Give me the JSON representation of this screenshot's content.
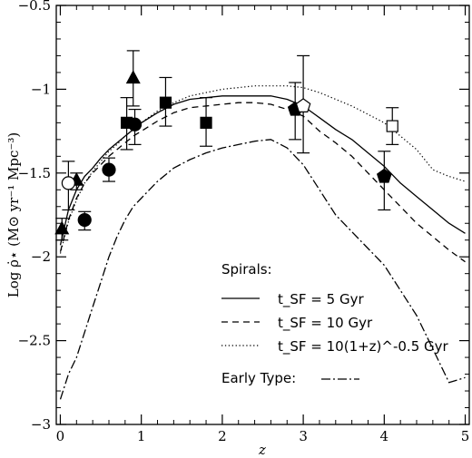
{
  "chart_data": {
    "type": "line",
    "xlabel": "z",
    "ylabel": "Log ρ̇⋆ (M⊙ yr⁻¹ Mpc⁻³)",
    "xlim": [
      -0.05,
      5.05
    ],
    "ylim": [
      -3,
      -0.5
    ],
    "xticks": [
      0,
      1,
      2,
      3,
      4,
      5
    ],
    "yticks": [
      -3,
      -2.5,
      -2,
      -1.5,
      -1,
      -0.5
    ],
    "xtick_labels": [
      "0",
      "1",
      "2",
      "3",
      "4",
      "5"
    ],
    "ytick_labels": [
      "−3",
      "−2.5",
      "−2",
      "−1.5",
      "−1",
      "−0.5"
    ],
    "grid": false,
    "legend_position": "bottom-right",
    "legend": {
      "header1": "Spirals:",
      "row1": "t_SF = 5 Gyr",
      "row2": "t_SF = 10 Gyr",
      "row3": "t_SF = 10(1+z)^-0.5 Gyr",
      "header2": "Early Type:"
    },
    "series": [
      {
        "name": "t_SF = 5 Gyr",
        "style": "solid",
        "x": [
          0,
          0.1,
          0.2,
          0.3,
          0.4,
          0.5,
          0.6,
          0.7,
          0.8,
          0.9,
          1.0,
          1.2,
          1.4,
          1.6,
          1.8,
          2.0,
          2.2,
          2.4,
          2.6,
          2.8,
          3.0,
          3.2,
          3.4,
          3.6,
          3.8,
          4.0,
          4.2,
          4.4,
          4.6,
          4.8,
          5.0
        ],
        "y": [
          -1.93,
          -1.72,
          -1.6,
          -1.52,
          -1.47,
          -1.41,
          -1.36,
          -1.32,
          -1.28,
          -1.24,
          -1.2,
          -1.14,
          -1.09,
          -1.06,
          -1.05,
          -1.04,
          -1.04,
          -1.04,
          -1.04,
          -1.06,
          -1.1,
          -1.17,
          -1.24,
          -1.3,
          -1.38,
          -1.46,
          -1.56,
          -1.64,
          -1.72,
          -1.8,
          -1.86
        ]
      },
      {
        "name": "t_SF = 10 Gyr",
        "style": "dashed",
        "x": [
          0,
          0.1,
          0.2,
          0.3,
          0.4,
          0.5,
          0.6,
          0.7,
          0.8,
          0.9,
          1.0,
          1.2,
          1.4,
          1.6,
          1.8,
          2.0,
          2.2,
          2.4,
          2.6,
          2.8,
          3.0,
          3.2,
          3.4,
          3.6,
          3.8,
          4.0,
          4.2,
          4.4,
          4.6,
          4.8,
          5.0
        ],
        "y": [
          -1.97,
          -1.78,
          -1.65,
          -1.56,
          -1.5,
          -1.45,
          -1.4,
          -1.36,
          -1.32,
          -1.28,
          -1.25,
          -1.19,
          -1.14,
          -1.11,
          -1.1,
          -1.09,
          -1.08,
          -1.08,
          -1.09,
          -1.12,
          -1.16,
          -1.25,
          -1.32,
          -1.4,
          -1.5,
          -1.6,
          -1.7,
          -1.8,
          -1.88,
          -1.96,
          -2.03
        ]
      },
      {
        "name": "t_SF = 10(1+z)^-0.5 Gyr",
        "style": "dotted",
        "x": [
          0,
          0.1,
          0.2,
          0.3,
          0.4,
          0.5,
          0.6,
          0.7,
          0.8,
          0.9,
          1.0,
          1.2,
          1.4,
          1.6,
          1.8,
          2.0,
          2.2,
          2.4,
          2.6,
          2.8,
          3.0,
          3.2,
          3.4,
          3.6,
          3.8,
          4.0,
          4.2,
          4.4,
          4.6,
          4.8,
          5.0
        ],
        "y": [
          -1.98,
          -1.79,
          -1.66,
          -1.56,
          -1.49,
          -1.43,
          -1.37,
          -1.33,
          -1.28,
          -1.24,
          -1.2,
          -1.13,
          -1.08,
          -1.04,
          -1.02,
          -1.0,
          -0.99,
          -0.98,
          -0.98,
          -0.98,
          -0.99,
          -1.02,
          -1.06,
          -1.1,
          -1.15,
          -1.2,
          -1.28,
          -1.36,
          -1.48,
          -1.52,
          -1.55
        ]
      },
      {
        "name": "Early Type",
        "style": "dashdot",
        "x": [
          0,
          0.1,
          0.2,
          0.3,
          0.4,
          0.5,
          0.6,
          0.7,
          0.8,
          0.9,
          1.0,
          1.2,
          1.4,
          1.6,
          1.8,
          2.0,
          2.2,
          2.4,
          2.6,
          2.8,
          3.0,
          3.2,
          3.4,
          3.6,
          3.8,
          4.0,
          4.2,
          4.4,
          4.6,
          4.8,
          5.0
        ],
        "y": [
          -2.85,
          -2.7,
          -2.6,
          -2.45,
          -2.3,
          -2.15,
          -2.0,
          -1.88,
          -1.78,
          -1.7,
          -1.65,
          -1.55,
          -1.47,
          -1.42,
          -1.38,
          -1.35,
          -1.33,
          -1.31,
          -1.3,
          -1.35,
          -1.45,
          -1.6,
          -1.75,
          -1.85,
          -1.95,
          -2.05,
          -2.2,
          -2.35,
          -2.55,
          -2.75,
          -2.72
        ]
      }
    ],
    "points": [
      {
        "marker": "triangle",
        "filled": true,
        "x": 0.02,
        "y": -1.83,
        "ylo": -1.9,
        "yhi": -1.77
      },
      {
        "marker": "triangle",
        "filled": true,
        "x": 0.2,
        "y": -1.54,
        "ylo": -1.6,
        "yhi": -1.5
      },
      {
        "marker": "triangle",
        "filled": true,
        "x": 0.9,
        "y": -0.93,
        "ylo": -1.1,
        "yhi": -0.77
      },
      {
        "marker": "circle",
        "filled": false,
        "x": 0.1,
        "y": -1.56,
        "ylo": -1.72,
        "yhi": -1.43
      },
      {
        "marker": "circle",
        "filled": true,
        "x": 0.3,
        "y": -1.78,
        "ylo": -1.84,
        "yhi": -1.73
      },
      {
        "marker": "circle",
        "filled": true,
        "x": 0.6,
        "y": -1.48,
        "ylo": -1.55,
        "yhi": -1.41
      },
      {
        "marker": "circle",
        "filled": true,
        "x": 0.92,
        "y": -1.21,
        "ylo": -1.33,
        "yhi": -1.12
      },
      {
        "marker": "square",
        "filled": true,
        "x": 0.82,
        "y": -1.2,
        "ylo": -1.36,
        "yhi": -1.05
      },
      {
        "marker": "square",
        "filled": true,
        "x": 1.3,
        "y": -1.08,
        "ylo": -1.22,
        "yhi": -0.93
      },
      {
        "marker": "square",
        "filled": true,
        "x": 1.8,
        "y": -1.2,
        "ylo": -1.34,
        "yhi": -1.05
      },
      {
        "marker": "pentagon",
        "filled": true,
        "x": 2.9,
        "y": -1.12,
        "ylo": -1.3,
        "yhi": -0.96
      },
      {
        "marker": "pentagon",
        "filled": false,
        "x": 3.0,
        "y": -1.1,
        "ylo": -1.38,
        "yhi": -0.8
      },
      {
        "marker": "pentagon",
        "filled": true,
        "x": 4.0,
        "y": -1.52,
        "ylo": -1.72,
        "yhi": -1.37
      },
      {
        "marker": "square",
        "filled": false,
        "x": 4.1,
        "y": -1.22,
        "ylo": -1.33,
        "yhi": -1.11
      }
    ]
  }
}
